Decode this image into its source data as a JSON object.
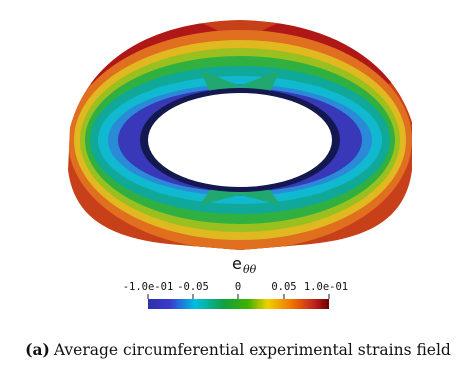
{
  "colorbar": {
    "title_main": "e",
    "title_sub": "θθ",
    "ticks": [
      "-1.0e-01",
      "-0.05",
      "0",
      "0.05",
      "1.0e-01"
    ],
    "range": [
      -0.1,
      0.1
    ],
    "colormap": [
      "#3b3bb8",
      "#3b3bb8",
      "#00c8e0",
      "#18b000",
      "#f0d000",
      "#f08000",
      "#c02020",
      "#7a0000"
    ]
  },
  "caption": {
    "label": "(a)",
    "text": "Average circumferential experimental strains field"
  },
  "colors": {
    "field_low": "#3838b0",
    "field_mid": "#20b080",
    "field_high": "#c03010"
  }
}
